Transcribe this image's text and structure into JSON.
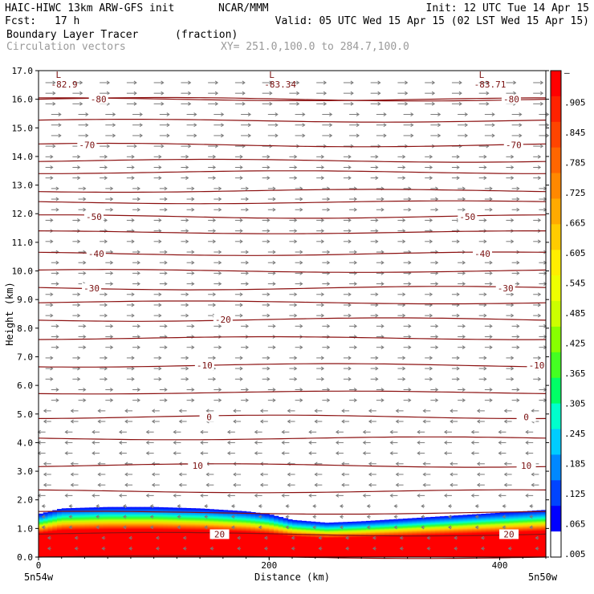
{
  "header": {
    "model": "HAIC-HIWC 13km ARW-GFS init",
    "org": "NCAR/MMM",
    "init": "Init: 12 UTC Tue 14 Apr 15",
    "fcst_label": "Fcst:",
    "fcst_value": "17 h",
    "valid": "Valid: 05 UTC Wed 15 Apr 15 (02 LST Wed 15 Apr 15)",
    "field": "Boundary Layer Tracer",
    "field_units": "(fraction)",
    "vectors": "Circulation vectors",
    "xy": "XY= 251.0,100.0 to 284.7,100.0"
  },
  "chart_data": {
    "type": "heatmap",
    "title": "Boundary Layer Tracer",
    "xlabel": "Distance (km)",
    "ylabel": "Height (km)",
    "xlim": [
      0,
      440
    ],
    "ylim": [
      0,
      17
    ],
    "x_ticks": [
      0,
      200,
      400
    ],
    "x_tick_labels": [
      "0",
      "200",
      "400"
    ],
    "y_ticks": [
      0,
      1,
      2,
      3,
      4,
      5,
      6,
      7,
      8,
      9,
      10,
      11,
      12,
      13,
      14,
      15,
      16,
      17
    ],
    "y_tick_labels": [
      "0.0",
      "1.0",
      "2.0",
      "3.0",
      "4.0",
      "5.0",
      "6.0",
      "7.0",
      "8.0",
      "9.0",
      "10.0",
      "11.0",
      "12.0",
      "13.0",
      "14.0",
      "15.0",
      "16.0",
      "17.0"
    ],
    "x_end_labels": [
      "5n54w",
      "5n50w"
    ],
    "colorbar_labels": [
      "–",
      ".905",
      ".845",
      ".785",
      ".725",
      ".665",
      ".605",
      ".545",
      ".485",
      ".425",
      ".365",
      ".305",
      ".245",
      ".185",
      ".125",
      ".065",
      ".005"
    ],
    "colorbar_colors": [
      "#ff0000",
      "#ff2200",
      "#ff4400",
      "#ff6600",
      "#ff8800",
      "#ffaa00",
      "#ffcc00",
      "#ffee00",
      "#eeff00",
      "#ccff00",
      "#88ff00",
      "#44ff22",
      "#00ff66",
      "#00ffcc",
      "#00ccff",
      "#0088ff",
      "#0044ff",
      "#0000ff",
      "#ffffff"
    ],
    "tracer_top_km": {
      "x": [
        0,
        20,
        60,
        100,
        140,
        180,
        200,
        220,
        250,
        280,
        320,
        360,
        400,
        440
      ],
      "top": [
        1.5,
        1.7,
        1.75,
        1.75,
        1.7,
        1.6,
        1.5,
        1.3,
        1.2,
        1.25,
        1.35,
        1.45,
        1.55,
        1.65
      ]
    },
    "contours": [
      {
        "label": "-80",
        "height_km": 16.0,
        "labels_x": [
          52,
          410
        ]
      },
      {
        "label": "-70",
        "height_km": 14.4,
        "labels_x": [
          42,
          412
        ]
      },
      {
        "label": "-50",
        "height_km": 11.9,
        "labels_x": [
          48,
          372
        ]
      },
      {
        "label": "-40",
        "height_km": 10.6,
        "labels_x": [
          50,
          385
        ]
      },
      {
        "label": "-30",
        "height_km": 9.4,
        "labels_x": [
          46,
          405
        ]
      },
      {
        "label": "-20",
        "height_km": 8.3,
        "labels_x": [
          160
        ]
      },
      {
        "label": "-10",
        "height_km": 6.7,
        "labels_x": [
          144,
          432
        ]
      },
      {
        "label": "0",
        "height_km": 4.9,
        "labels_x": [
          148,
          423
        ]
      },
      {
        "label": "10",
        "height_km": 3.2,
        "labels_x": [
          138,
          423
        ]
      },
      {
        "label": "20",
        "height_km": 0.8,
        "labels_x": [
          157,
          408
        ]
      }
    ],
    "extra_isolines_km": [
      0.0,
      1.55,
      2.3,
      4.15,
      5.75,
      7.65,
      8.9,
      10.0,
      11.35,
      12.4,
      12.8,
      13.45,
      13.85,
      15.25,
      16.0
    ],
    "lows": [
      {
        "label": "L",
        "value": "-82.9",
        "x": 8,
        "y": 16.8
      },
      {
        "label": "L",
        "value": "-83.34",
        "x": 193,
        "y": 16.8
      },
      {
        "label": "L",
        "value": "-83.71",
        "x": 375,
        "y": 16.8
      }
    ]
  }
}
